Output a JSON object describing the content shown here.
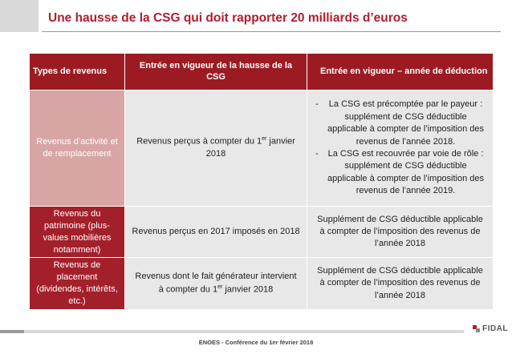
{
  "header": {
    "title": "Une hausse de la CSG qui doit rapporter 20 milliards d’euros"
  },
  "table": {
    "headers": [
      "Types de revenus",
      "Entrée en vigueur de la hausse de la CSG",
      "Entrée en vigueur – année de déduction"
    ],
    "rows": [
      {
        "category": "Revenus d’activité et de remplacement",
        "entry_pre": "Revenus perçus à compter du 1",
        "entry_sup": "er",
        "entry_post": " janvier 2018",
        "deduction_bullets": [
          "La CSG est précomptée par le payeur : supplément de CSG déductible applicable à compter de l’imposition des revenus de l’année 2018.",
          "La CSG est recouvrée par voie de rôle : supplément de CSG déductible applicable à compter de l’imposition des revenus de l’année 2019."
        ],
        "bullet_marker": "-"
      },
      {
        "category": "Revenus du patrimoine (plus-values mobilières notamment)",
        "entry": "Revenus perçus en 2017 imposés en 2018",
        "deduction": "Supplément de CSG déductible applicable à compter de l’imposition des revenus de l’année 2018"
      },
      {
        "category": "Revenus de placement (dividendes, intérêts, etc.)",
        "entry_pre": "Revenus dont le fait générateur intervient à compter du 1",
        "entry_sup": "er",
        "entry_post": " janvier 2018",
        "deduction": "Supplément de CSG déductible applicable à compter de l’imposition des revenus de l’année 2018"
      }
    ]
  },
  "footer": {
    "text": "ENOES - Conférence du 1er février 2018"
  },
  "logo": {
    "text": "FIDAL"
  },
  "colors": {
    "title_red": "#b01e2e",
    "header_red": "#9c1b22",
    "category_pink": "#d8a5a5",
    "category_red": "#a3202a",
    "cell_gray": "#e8e8e8"
  }
}
